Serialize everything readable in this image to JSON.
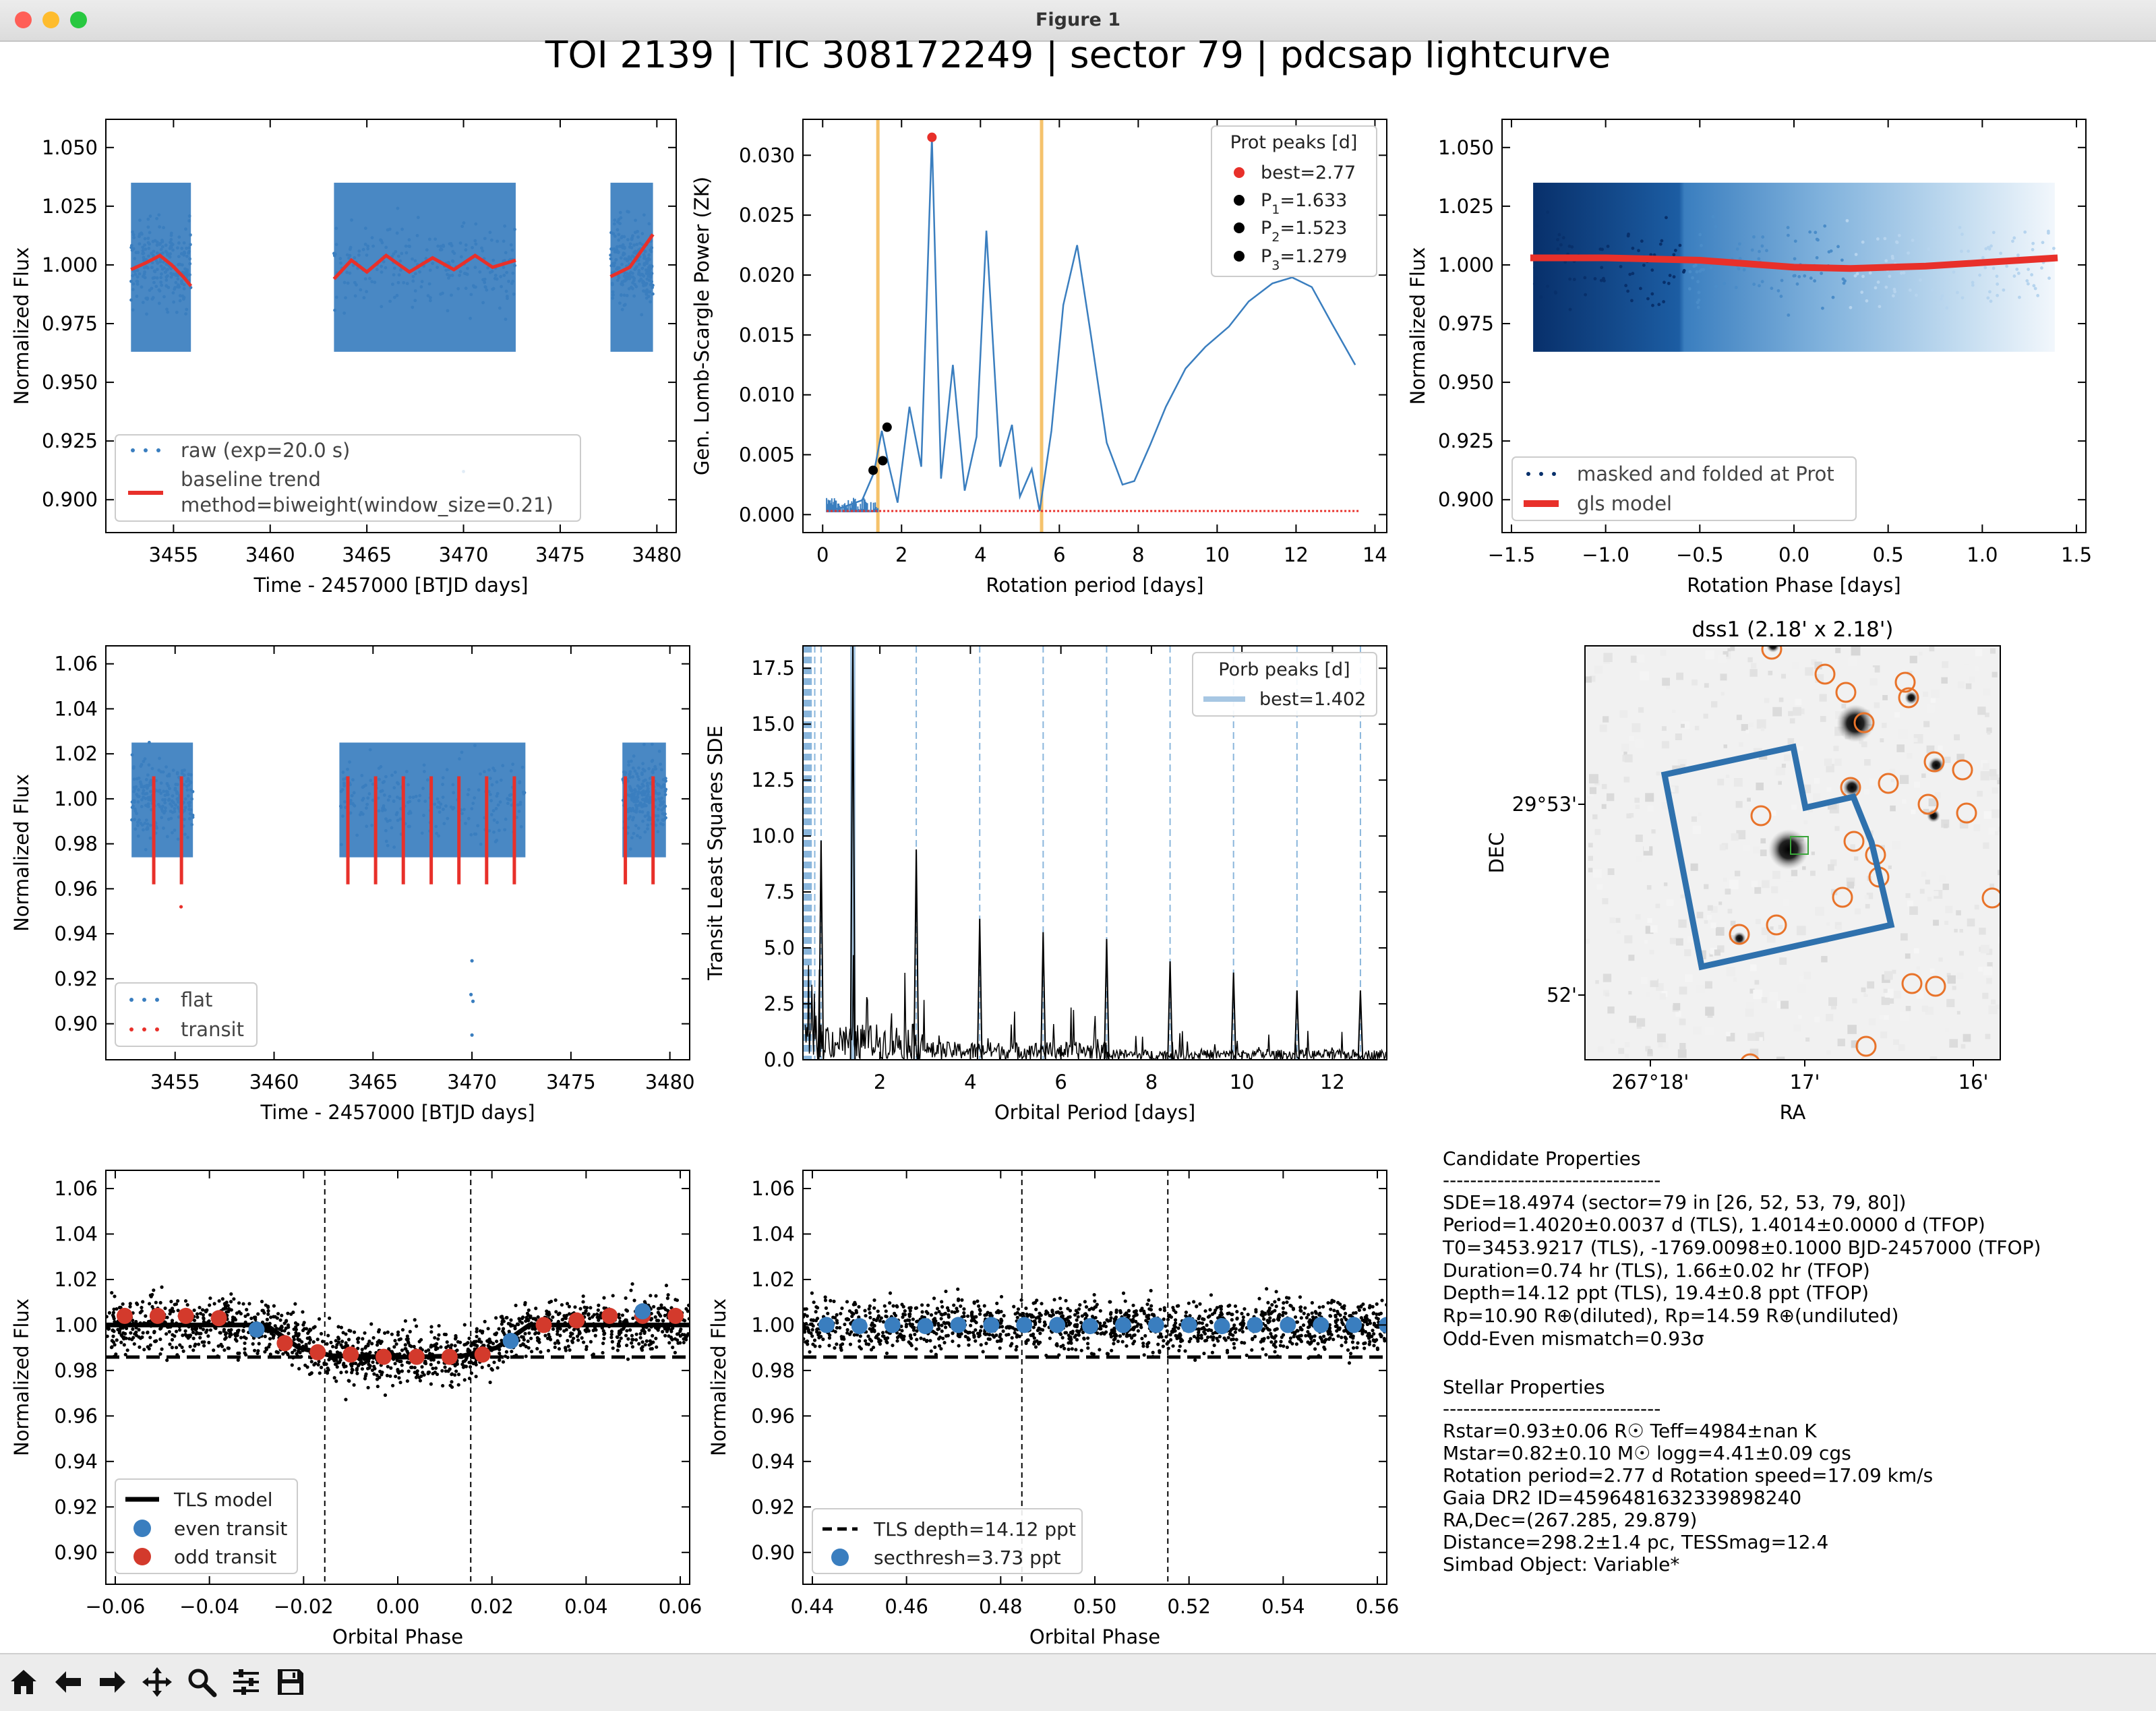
{
  "window": {
    "title": "Figure 1",
    "colors": {
      "close": "#ff5f57",
      "minimize": "#febc2e",
      "maximize": "#28c840"
    }
  },
  "figure": {
    "suptitle": "TOI 2139 | TIC 308172249 | sector 79 | pdcsap lightcurve",
    "panels": {
      "raw": {
        "xlabel": "Time - 2457000 [BTJD days]",
        "ylabel": "Normalized Flux",
        "xticks": [
          3455,
          3460,
          3465,
          3470,
          3475,
          3480
        ],
        "yticks": [
          0.9,
          0.925,
          0.95,
          0.975,
          1.0,
          1.025,
          1.05
        ],
        "ytick_labels": [
          "0.900",
          "0.925",
          "0.950",
          "0.975",
          "1.000",
          "1.025",
          "1.050"
        ],
        "legend": {
          "raw": "raw (exp=20.0 s)",
          "trend_line1": "baseline trend",
          "trend_line2": "method=biweight(window_size=0.21)"
        }
      },
      "gls": {
        "xlabel": "Rotation period [days]",
        "ylabel": "Gen. Lomb-Scargle Power (ZK)",
        "xticks": [
          0,
          2,
          4,
          6,
          8,
          10,
          12,
          14
        ],
        "yticks": [
          0.0,
          0.005,
          0.01,
          0.015,
          0.02,
          0.025,
          0.03
        ],
        "ytick_labels": [
          "0.000",
          "0.005",
          "0.010",
          "0.015",
          "0.020",
          "0.025",
          "0.030"
        ],
        "legend": {
          "title": "Prot peaks [d]",
          "best": "best=2.77",
          "p1": "1.633",
          "p2": "1.523",
          "p3": "1.279"
        }
      },
      "fold_rot": {
        "xlabel": "Rotation Phase [days]",
        "ylabel": "Normalized Flux",
        "xticks": [
          -1.5,
          -1.0,
          -0.5,
          0.0,
          0.5,
          1.0,
          1.5
        ],
        "xtick_labels": [
          "−1.5",
          "−1.0",
          "−0.5",
          "0.0",
          "0.5",
          "1.0",
          "1.5"
        ],
        "yticks": [
          0.9,
          0.925,
          0.95,
          0.975,
          1.0,
          1.025,
          1.05
        ],
        "ytick_labels": [
          "0.900",
          "0.925",
          "0.950",
          "0.975",
          "1.000",
          "1.025",
          "1.050"
        ],
        "legend": {
          "masked": "masked and folded at Prot",
          "model": "gls model"
        }
      },
      "flat": {
        "xlabel": "Time - 2457000 [BTJD days]",
        "ylabel": "Normalized Flux",
        "xticks": [
          3455,
          3460,
          3465,
          3470,
          3475,
          3480
        ],
        "yticks": [
          0.9,
          0.92,
          0.94,
          0.96,
          0.98,
          1.0,
          1.02,
          1.04,
          1.06
        ],
        "ytick_labels": [
          "0.90",
          "0.92",
          "0.94",
          "0.96",
          "0.98",
          "1.00",
          "1.02",
          "1.04",
          "1.06"
        ],
        "legend": {
          "flat": "flat",
          "transit": "transit"
        }
      },
      "tls": {
        "xlabel": "Orbital Period [days]",
        "ylabel": "Transit Least Squares SDE",
        "xticks": [
          2,
          4,
          6,
          8,
          10,
          12
        ],
        "yticks": [
          0.0,
          2.5,
          5.0,
          7.5,
          10.0,
          12.5,
          15.0,
          17.5
        ],
        "ytick_labels": [
          "0.0",
          "2.5",
          "5.0",
          "7.5",
          "10.0",
          "12.5",
          "15.0",
          "17.5"
        ],
        "legend": {
          "title": "Porb peaks [d]",
          "best": "best=1.402"
        }
      },
      "image": {
        "title": "dss1 (2.18' x 2.18')",
        "xlabel": "RA",
        "ylabel": "DEC",
        "xtick_labels": [
          "267°18'",
          "17'",
          "16'"
        ],
        "ytick_labels": [
          "29°53'",
          "52'"
        ]
      },
      "fold_transit": {
        "xlabel": "Orbital Phase",
        "ylabel": "Normalized Flux",
        "xticks": [
          -0.06,
          -0.04,
          -0.02,
          0.0,
          0.02,
          0.04,
          0.06
        ],
        "xtick_labels": [
          "−0.06",
          "−0.04",
          "−0.02",
          "0.00",
          "0.02",
          "0.04",
          "0.06"
        ],
        "yticks": [
          0.9,
          0.92,
          0.94,
          0.96,
          0.98,
          1.0,
          1.02,
          1.04,
          1.06
        ],
        "ytick_labels": [
          "0.90",
          "0.92",
          "0.94",
          "0.96",
          "0.98",
          "1.00",
          "1.02",
          "1.04",
          "1.06"
        ],
        "legend": {
          "model": "TLS model",
          "even": "even transit",
          "odd": "odd transit"
        }
      },
      "fold_secondary": {
        "xlabel": "Orbital Phase",
        "ylabel": "Normalized Flux",
        "xticks": [
          0.44,
          0.46,
          0.48,
          0.5,
          0.52,
          0.54,
          0.56
        ],
        "xtick_labels": [
          "0.44",
          "0.46",
          "0.48",
          "0.50",
          "0.52",
          "0.54",
          "0.56"
        ],
        "yticks": [
          0.9,
          0.92,
          0.94,
          0.96,
          0.98,
          1.0,
          1.02,
          1.04,
          1.06
        ],
        "ytick_labels": [
          "0.90",
          "0.92",
          "0.94",
          "0.96",
          "0.98",
          "1.00",
          "1.02",
          "1.04",
          "1.06"
        ],
        "legend": {
          "depth": "TLS depth=14.12 ppt",
          "secthresh": "secthresh=3.73 ppt"
        }
      }
    },
    "candidate": {
      "header": "Candidate Properties",
      "rule": "--------------------------------",
      "lines": [
        "SDE=18.4974 (sector=79 in [26, 52, 53, 79, 80])",
        "Period=1.4020±0.0037 d (TLS), 1.4014±0.0000 d (TFOP)",
        "T0=3453.9217 (TLS), -1769.0098±0.1000 BJD-2457000 (TFOP)",
        "Duration=0.74 hr (TLS), 1.66±0.02 hr (TFOP)",
        "Depth=14.12 ppt (TLS), 19.4±0.8 ppt (TFOP)",
        "Rp=10.90 R⊕(diluted), Rp=14.59 R⊕(undiluted)",
        "Odd-Even mismatch=0.93σ"
      ]
    },
    "stellar": {
      "header": "Stellar Properties",
      "rule": "--------------------------------",
      "lines": [
        "Rstar=0.93±0.06 R☉     Teff=4984±nan K",
        "Mstar=0.82±0.10 M☉     logg=4.41±0.09 cgs",
        "Rotation period=2.77 d     Rotation speed=17.09 km/s",
        "Gaia DR2 ID=4596481632339898240",
        "RA,Dec=(267.285, 29.879)",
        "Distance=298.2±1.4 pc, TESSmag=12.4",
        "Simbad Object: Variable*"
      ]
    }
  },
  "chart_data": [
    {
      "type": "scatter",
      "panel": "raw",
      "xlabel": "Time - 2457000 [BTJD days]",
      "ylabel": "Normalized Flux",
      "xlim": [
        3451.5,
        3481
      ],
      "ylim": [
        0.886,
        1.062
      ],
      "segments": [
        [
          3452.8,
          3455.9
        ],
        [
          3463.3,
          3472.7
        ],
        [
          3477.6,
          3479.8
        ]
      ],
      "flux_median": 1.0,
      "flux_scatter_range": [
        0.955,
        1.04
      ],
      "trend": {
        "x": [
          3452.8,
          3453.6,
          3454.3,
          3454.9,
          3455.5,
          3455.9,
          3463.3,
          3464.2,
          3465.0,
          3466.0,
          3467.2,
          3468.4,
          3469.5,
          3470.6,
          3471.5,
          3472.7,
          3477.6,
          3478.6,
          3479.8
        ],
        "y": [
          0.998,
          1.001,
          1.004,
          1.0,
          0.995,
          0.991,
          0.994,
          1.002,
          0.997,
          1.004,
          0.997,
          1.003,
          0.998,
          1.004,
          0.999,
          1.002,
          0.995,
          0.999,
          1.013
        ]
      }
    },
    {
      "type": "line",
      "panel": "gls",
      "xlabel": "Rotation period [days]",
      "ylabel": "Gen. Lomb-Scargle Power (ZK)",
      "xlim": [
        -0.5,
        14.3
      ],
      "ylim": [
        -0.0015,
        0.033
      ],
      "x": [
        0.1,
        0.5,
        1.0,
        1.3,
        1.5,
        1.65,
        1.9,
        2.2,
        2.5,
        2.77,
        3.0,
        3.3,
        3.6,
        3.9,
        4.15,
        4.5,
        4.8,
        5.0,
        5.3,
        5.5,
        5.8,
        6.1,
        6.45,
        6.8,
        7.2,
        7.6,
        7.9,
        8.3,
        8.7,
        9.2,
        9.7,
        10.3,
        10.8,
        11.4,
        11.9,
        12.4,
        12.9,
        13.5
      ],
      "y": [
        0.0003,
        0.0006,
        0.0012,
        0.0035,
        0.007,
        0.0045,
        0.001,
        0.009,
        0.004,
        0.0315,
        0.003,
        0.0125,
        0.002,
        0.0065,
        0.0237,
        0.004,
        0.0075,
        0.0015,
        0.0038,
        0.0003,
        0.007,
        0.0175,
        0.0225,
        0.015,
        0.006,
        0.0025,
        0.0028,
        0.0058,
        0.009,
        0.0122,
        0.014,
        0.0157,
        0.0178,
        0.0193,
        0.0198,
        0.019,
        0.016,
        0.0125
      ],
      "vlines": [
        1.4,
        5.55
      ],
      "baseline": 0.0003,
      "peaks": [
        {
          "label": "best",
          "x": 2.77,
          "y": 0.0315
        },
        {
          "label": "P1",
          "x": 1.633,
          "y": 0.0073
        },
        {
          "label": "P2",
          "x": 1.523,
          "y": 0.0045
        },
        {
          "label": "P3",
          "x": 1.279,
          "y": 0.0037
        }
      ]
    },
    {
      "type": "scatter",
      "panel": "fold_rot",
      "xlabel": "Rotation Phase [days]",
      "ylabel": "Normalized Flux",
      "xlim": [
        -1.55,
        1.55
      ],
      "ylim": [
        0.886,
        1.062
      ],
      "x_range": [
        -1.385,
        1.385
      ],
      "flux_scatter_range": [
        0.955,
        1.04
      ],
      "model": {
        "x": [
          -1.4,
          -1.0,
          -0.5,
          0.0,
          0.3,
          0.7,
          1.0,
          1.4
        ],
        "y": [
          1.003,
          1.003,
          1.002,
          0.999,
          0.9985,
          0.9995,
          1.001,
          1.003
        ]
      }
    },
    {
      "type": "scatter",
      "panel": "flat",
      "xlabel": "Time - 2457000 [BTJD days]",
      "ylabel": "Normalized Flux",
      "xlim": [
        3451.5,
        3481
      ],
      "ylim": [
        0.884,
        1.068
      ],
      "segments": [
        [
          3452.8,
          3455.9
        ],
        [
          3463.3,
          3472.7
        ],
        [
          3477.6,
          3479.8
        ]
      ],
      "transit_times": [
        3453.92,
        3455.32,
        3463.73,
        3465.13,
        3466.53,
        3467.94,
        3469.34,
        3470.74,
        3472.14,
        3477.75,
        3479.15
      ],
      "outliers": [
        [
          3470.0,
          0.928
        ],
        [
          3469.95,
          0.913
        ],
        [
          3470.05,
          0.91
        ],
        [
          3470.0,
          0.895
        ],
        [
          3455.3,
          0.952
        ]
      ]
    },
    {
      "type": "line",
      "panel": "tls",
      "xlabel": "Orbital Period [days]",
      "ylabel": "Transit Least Squares SDE",
      "xlim": [
        0.3,
        13.2
      ],
      "ylim": [
        0,
        18.5
      ],
      "best_period": 1.402,
      "best_sde": 18.4974,
      "harmonics": [
        0.467,
        0.561,
        0.701,
        2.804,
        4.206,
        5.608,
        7.01,
        8.412,
        9.814,
        11.216,
        12.618
      ],
      "peaks": [
        {
          "x": 0.701,
          "y": 9.8
        },
        {
          "x": 1.402,
          "y": 18.4974
        },
        {
          "x": 2.804,
          "y": 9.4
        },
        {
          "x": 4.206,
          "y": 6.3
        },
        {
          "x": 5.608,
          "y": 5.7
        },
        {
          "x": 7.01,
          "y": 5.4
        },
        {
          "x": 8.412,
          "y": 4.4
        },
        {
          "x": 9.814,
          "y": 3.9
        },
        {
          "x": 11.216,
          "y": 3.1
        },
        {
          "x": 12.618,
          "y": 3.1
        }
      ]
    },
    {
      "type": "scatter",
      "panel": "fold_transit",
      "xlabel": "Orbital Phase",
      "ylabel": "Normalized Flux",
      "xlim": [
        -0.062,
        0.062
      ],
      "ylim": [
        0.886,
        1.068
      ],
      "vlines": [
        -0.0155,
        0.0155
      ],
      "depth_line": 0.98588,
      "model": {
        "x": [
          -0.062,
          -0.028,
          -0.021,
          -0.014,
          0.0,
          0.014,
          0.021,
          0.028,
          0.062
        ],
        "y": [
          1.0,
          1.0,
          0.99,
          0.9865,
          0.9858,
          0.9865,
          0.99,
          1.0,
          1.0
        ]
      },
      "odd_bins": {
        "x": [
          -0.058,
          -0.051,
          -0.045,
          -0.038,
          -0.024,
          -0.017,
          -0.01,
          -0.003,
          0.004,
          0.011,
          0.018,
          0.031,
          0.038,
          0.045,
          0.052,
          0.059
        ],
        "y": [
          1.004,
          1.004,
          1.004,
          1.003,
          0.992,
          0.988,
          0.987,
          0.986,
          0.986,
          0.986,
          0.987,
          1.0,
          1.002,
          1.004,
          1.004,
          1.004
        ]
      },
      "even_bins": {
        "x": [
          -0.03,
          0.024,
          0.052
        ],
        "y": [
          0.998,
          0.993,
          1.006
        ]
      }
    },
    {
      "type": "scatter",
      "panel": "fold_secondary",
      "xlabel": "Orbital Phase",
      "ylabel": "Normalized Flux",
      "xlim": [
        0.438,
        0.562
      ],
      "ylim": [
        0.886,
        1.068
      ],
      "vlines": [
        0.4845,
        0.5155
      ],
      "depth_line": 0.98588,
      "bins": {
        "x": [
          0.443,
          0.45,
          0.457,
          0.464,
          0.471,
          0.478,
          0.485,
          0.492,
          0.499,
          0.506,
          0.513,
          0.52,
          0.527,
          0.534,
          0.541,
          0.548,
          0.555,
          0.562
        ],
        "y": [
          1.0,
          0.9995,
          1.0,
          0.9995,
          1.0,
          1.0,
          1.0,
          1.0,
          0.9995,
          1.0,
          1.0,
          1.0,
          0.9995,
          1.0,
          1.0,
          1.0,
          1.0,
          1.0
        ]
      }
    }
  ]
}
